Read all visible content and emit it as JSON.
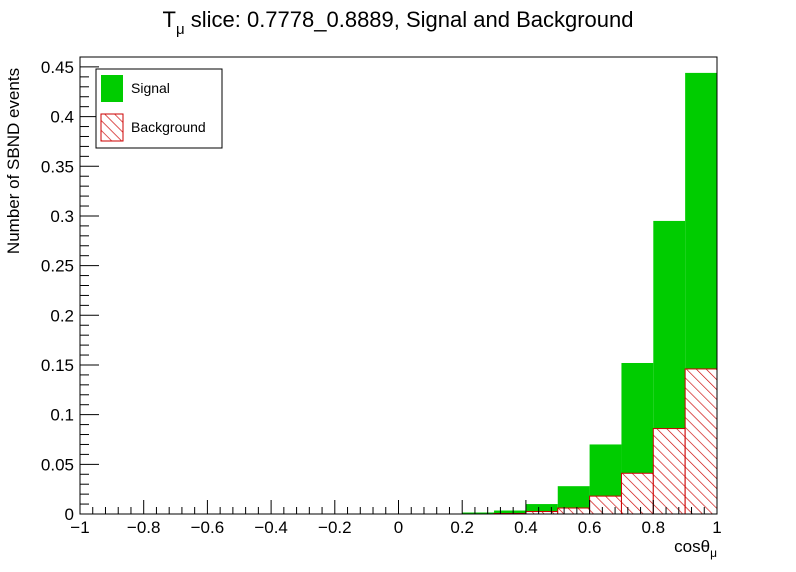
{
  "chart_data": {
    "type": "bar",
    "stacked": true,
    "title_main": "T",
    "title_sub": "μ",
    "title_rest": " slice: 0.7778_0.8889, Signal and Background",
    "xlabel_main": "cosθ",
    "xlabel_sub": "μ",
    "ylabel": "Number of SBND events",
    "xlim": [
      -1,
      1
    ],
    "ylim": [
      0,
      0.46
    ],
    "x_ticks": [
      -1,
      -0.8,
      -0.6,
      -0.4,
      -0.2,
      0,
      0.2,
      0.4,
      0.6,
      0.8,
      1
    ],
    "x_tick_labels": [
      "−1",
      "−0.8",
      "−0.6",
      "−0.4",
      "−0.2",
      "0",
      "0.2",
      "0.4",
      "0.6",
      "0.8",
      "1"
    ],
    "y_ticks": [
      0,
      0.05,
      0.1,
      0.15,
      0.2,
      0.25,
      0.3,
      0.35,
      0.4,
      0.45
    ],
    "y_tick_labels": [
      "0",
      "0.05",
      "0.1",
      "0.15",
      "0.2",
      "0.25",
      "0.3",
      "0.35",
      "0.4",
      "0.45"
    ],
    "bin_edges": [
      -1,
      -0.9,
      -0.8,
      -0.7,
      -0.6,
      -0.5,
      -0.4,
      -0.3,
      -0.2,
      -0.1,
      0,
      0.1,
      0.2,
      0.3,
      0.4,
      0.5,
      0.6,
      0.7,
      0.8,
      0.9,
      1
    ],
    "series": [
      {
        "name": "Signal",
        "color": "#00cc00",
        "values": [
          0,
          0,
          0,
          0,
          0,
          0,
          0,
          0,
          0,
          0,
          0,
          0,
          0.0015,
          0.003,
          0.0075,
          0.022,
          0.052,
          0.111,
          0.209,
          0.298
        ]
      },
      {
        "name": "Background",
        "color": "#cc0000",
        "pattern": "hatched",
        "values": [
          0,
          0,
          0,
          0,
          0,
          0,
          0,
          0,
          0,
          0,
          0,
          0,
          0,
          0.0005,
          0.0025,
          0.006,
          0.018,
          0.041,
          0.086,
          0.146
        ]
      }
    ],
    "legend": [
      "Signal",
      "Background"
    ],
    "legend_position": "top-left",
    "grid": false
  }
}
